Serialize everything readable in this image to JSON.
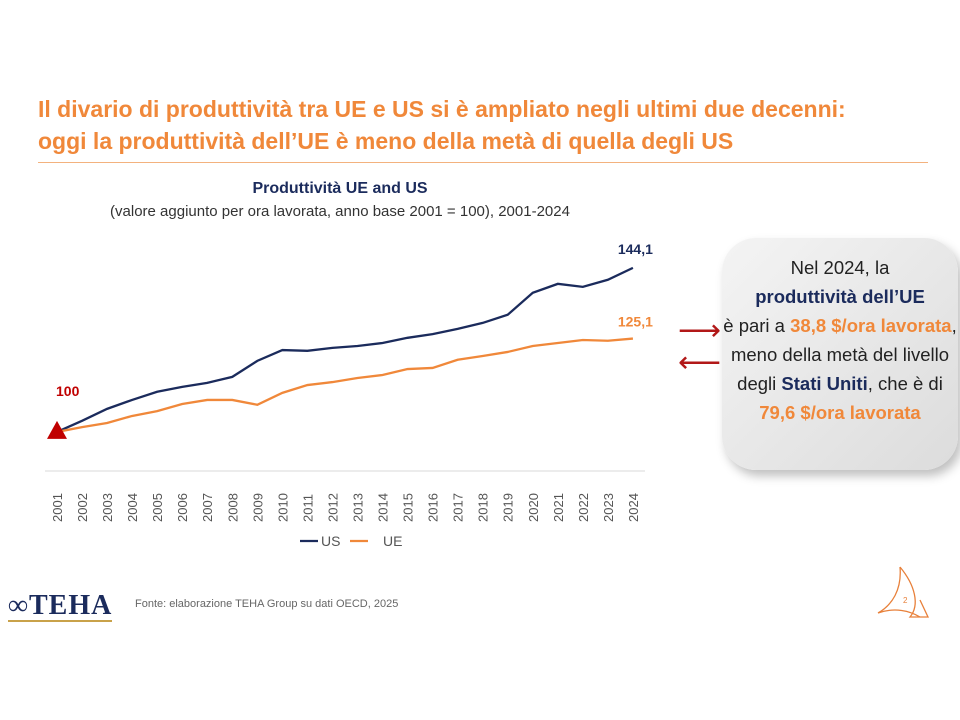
{
  "title": [
    "Il divario di produttività tra UE e US si è ampliato negli ultimi due decenni:",
    "oggi la produttività dell’UE è meno della metà di quella degli US"
  ],
  "callout": {
    "p1": "Nel 2024, la",
    "p2": "produttività dell’UE",
    "p3": "è pari a",
    "p4": "38,8 $/ora lavorata",
    "p5": ", meno della metà del livello degli",
    "p6": "Stati Uniti",
    "p7": ", che è di",
    "p8": "79,6 $/ora lavorata"
  },
  "arrows": {
    "right": "⟶",
    "left": "⟵"
  },
  "source": "Fonte: elaborazione TEHA Group su dati OECD, 2025",
  "logo": "TEHA",
  "page_number": "2",
  "colors": {
    "us": "#1b2b5c",
    "ue": "#f0883a",
    "base_marker": "#c00000",
    "accent": "#f0883a"
  },
  "chart_data": {
    "type": "line",
    "title": "Produttività UE and US",
    "subtitle": "(valore aggiunto per ora lavorata, anno base 2001 = 100), 2001-2024",
    "categories": [
      "2001",
      "2002",
      "2003",
      "2004",
      "2005",
      "2006",
      "2007",
      "2008",
      "2009",
      "2010",
      "2011",
      "2012",
      "2013",
      "2014",
      "2015",
      "2016",
      "2017",
      "2018",
      "2019",
      "2020",
      "2021",
      "2022",
      "2023",
      "2024"
    ],
    "series": [
      {
        "name": "US",
        "values": [
          100,
          103.0,
          106.2,
          108.6,
          110.8,
          112.1,
          113.2,
          114.8,
          119.1,
          122.0,
          121.8,
          122.6,
          123.1,
          123.9,
          125.3,
          126.3,
          127.7,
          129.3,
          131.5,
          137.4,
          139.8,
          139.0,
          140.9,
          144.1
        ],
        "end_label": "144,1"
      },
      {
        "name": "UE",
        "values": [
          100,
          101.3,
          102.4,
          104.3,
          105.6,
          107.5,
          108.6,
          108.6,
          107.3,
          110.5,
          112.6,
          113.4,
          114.5,
          115.3,
          116.9,
          117.2,
          119.4,
          120.4,
          121.5,
          123.1,
          123.9,
          124.7,
          124.5,
          125.1
        ],
        "end_label": "125,1"
      }
    ],
    "base_label": "100",
    "ylim": [
      89.5,
      148.9
    ],
    "grid": false,
    "legend": "bottom"
  }
}
